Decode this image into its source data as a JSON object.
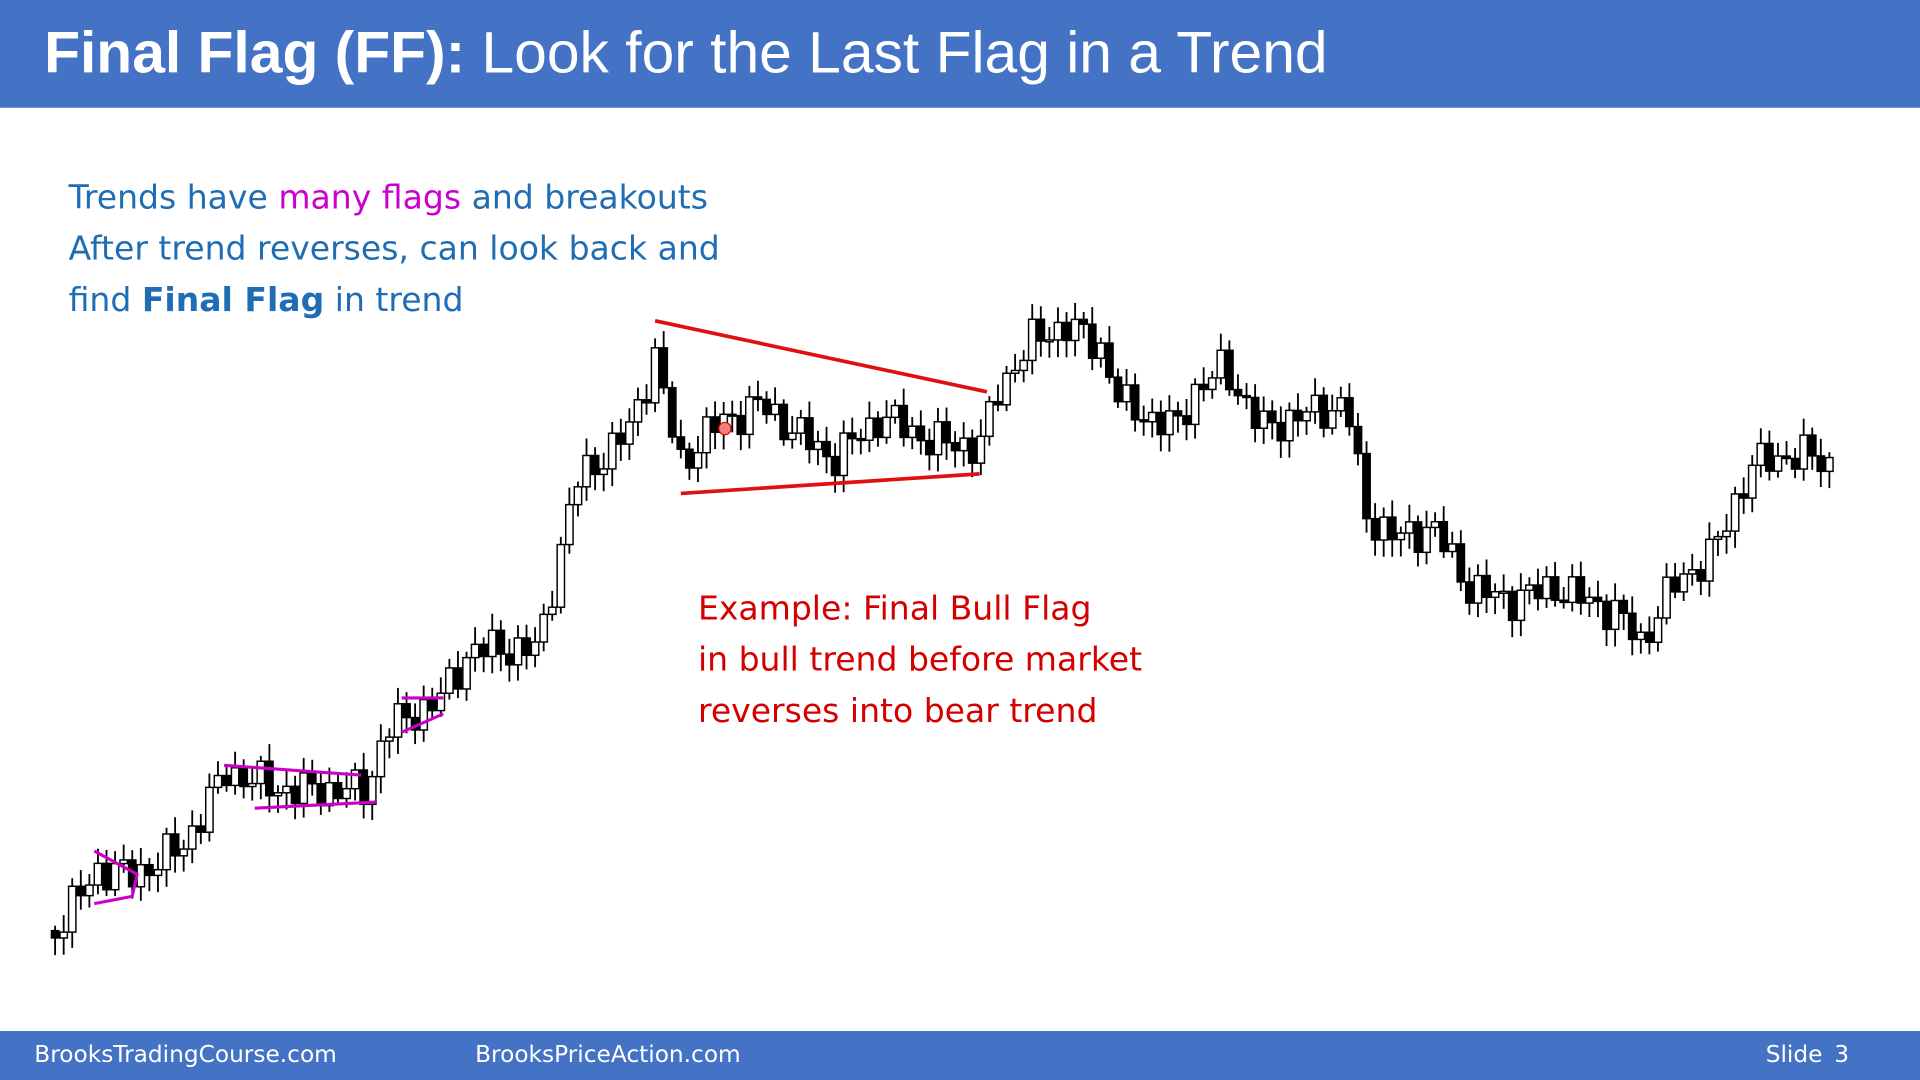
{
  "header": {
    "title_bold": "Final Flag (FF):",
    "title_rest": "Look for the Last Flag in a Trend"
  },
  "bullets": {
    "line1": {
      "before": "Trends have",
      "highlight": "many flags",
      "after": "and breakouts"
    },
    "line2": "After trend reverses, can look back and",
    "line3": {
      "before": "find",
      "bold": "Final Flag",
      "after": "in trend"
    }
  },
  "example": {
    "lines": [
      "Example: Final Bull Flag",
      "in bull trend before market",
      "reverses into bear trend"
    ]
  },
  "footer": {
    "left": "BrooksTradingCourse.com",
    "middle": "BrooksPriceAction.com",
    "slide_label": "Slide",
    "slide_number": "3"
  }
}
